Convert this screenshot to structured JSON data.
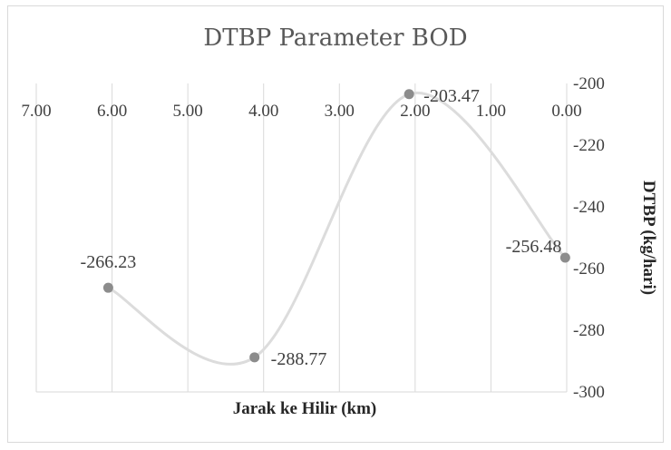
{
  "chart_data": {
    "type": "scatter",
    "title": "DTBP  Parameter  BOD",
    "xlabel": "Jarak ke Hilir  (km)",
    "ylabel": "DTBP (kg/hari)",
    "x_reversed": true,
    "x_axis_position": "top",
    "y_axis_position": "right",
    "xlim": [
      0,
      7
    ],
    "ylim": [
      -300,
      -200
    ],
    "x_ticks": [
      "7.00",
      "6.00",
      "5.00",
      "4.00",
      "3.00",
      "2.00",
      "1.00",
      "0.00"
    ],
    "y_ticks": [
      "-200",
      "-220",
      "-240",
      "-260",
      "-280",
      "-300"
    ],
    "grid": "vertical",
    "smooth_line": true,
    "series": [
      {
        "x": [
          6.05,
          4.12,
          2.08,
          0.02
        ],
        "y": [
          -266.23,
          -288.77,
          -203.47,
          -256.48
        ],
        "labels": [
          "-266.23",
          "-288.77",
          "-203.47",
          "-256.48"
        ]
      }
    ]
  }
}
